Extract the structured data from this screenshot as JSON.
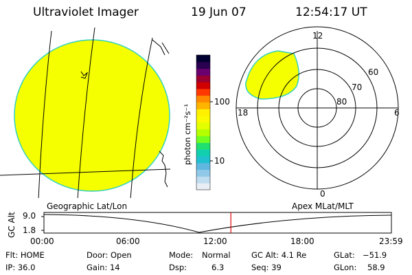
{
  "header": {
    "title": "Ultraviolet Imager",
    "date": "19 Jun 07",
    "time": "12:54:17 UT"
  },
  "colorbar": {
    "unit_label": "photon cm⁻²s⁻¹",
    "ticks": [
      "100",
      "10"
    ],
    "colors": [
      "#000030",
      "#2a0050",
      "#6a0070",
      "#9a0030",
      "#d00000",
      "#ff3a00",
      "#ff8a00",
      "#ffb400",
      "#fff000",
      "#fafa00",
      "#e4ff00",
      "#b4ff00",
      "#70ff20",
      "#20e070",
      "#10d0b0",
      "#20c0d0",
      "#60b8e0",
      "#90c8e8",
      "#c0dcef",
      "#e8eef4"
    ]
  },
  "left_panel": {
    "caption": "Geographic Lat/Lon",
    "fill_color": "#f5ff00"
  },
  "right_panel": {
    "caption": "Apex MLat/MLT",
    "mlt_labels": {
      "top": "12",
      "left": "18",
      "right": "6",
      "bottom": "0"
    },
    "mlat_labels": [
      "60",
      "70",
      "80"
    ]
  },
  "timeline": {
    "axis_label": "GC Alt",
    "y_labels": [
      "9.0",
      "1.8"
    ],
    "x_labels": [
      "00:00",
      "06:00",
      "12:00",
      "18:00",
      "23:59"
    ],
    "marker_time": "12:54",
    "marker_color": "#e00000"
  },
  "status": {
    "flt": "Flt: HOME",
    "door": "Door: Open",
    "mode_label": "Mode:",
    "mode_value": "Normal",
    "gc_alt": "GC Alt: 4.1 Re",
    "glat_label": "GLat:",
    "glat_value": "−51.9",
    "ip": "IP: 36.0",
    "gain": "Gain: 14",
    "dsp_label": "Dsp:",
    "dsp_value": "6.3",
    "seq": "Seq: 39",
    "glon_label": "GLon:",
    "glon_value": "58.9"
  }
}
